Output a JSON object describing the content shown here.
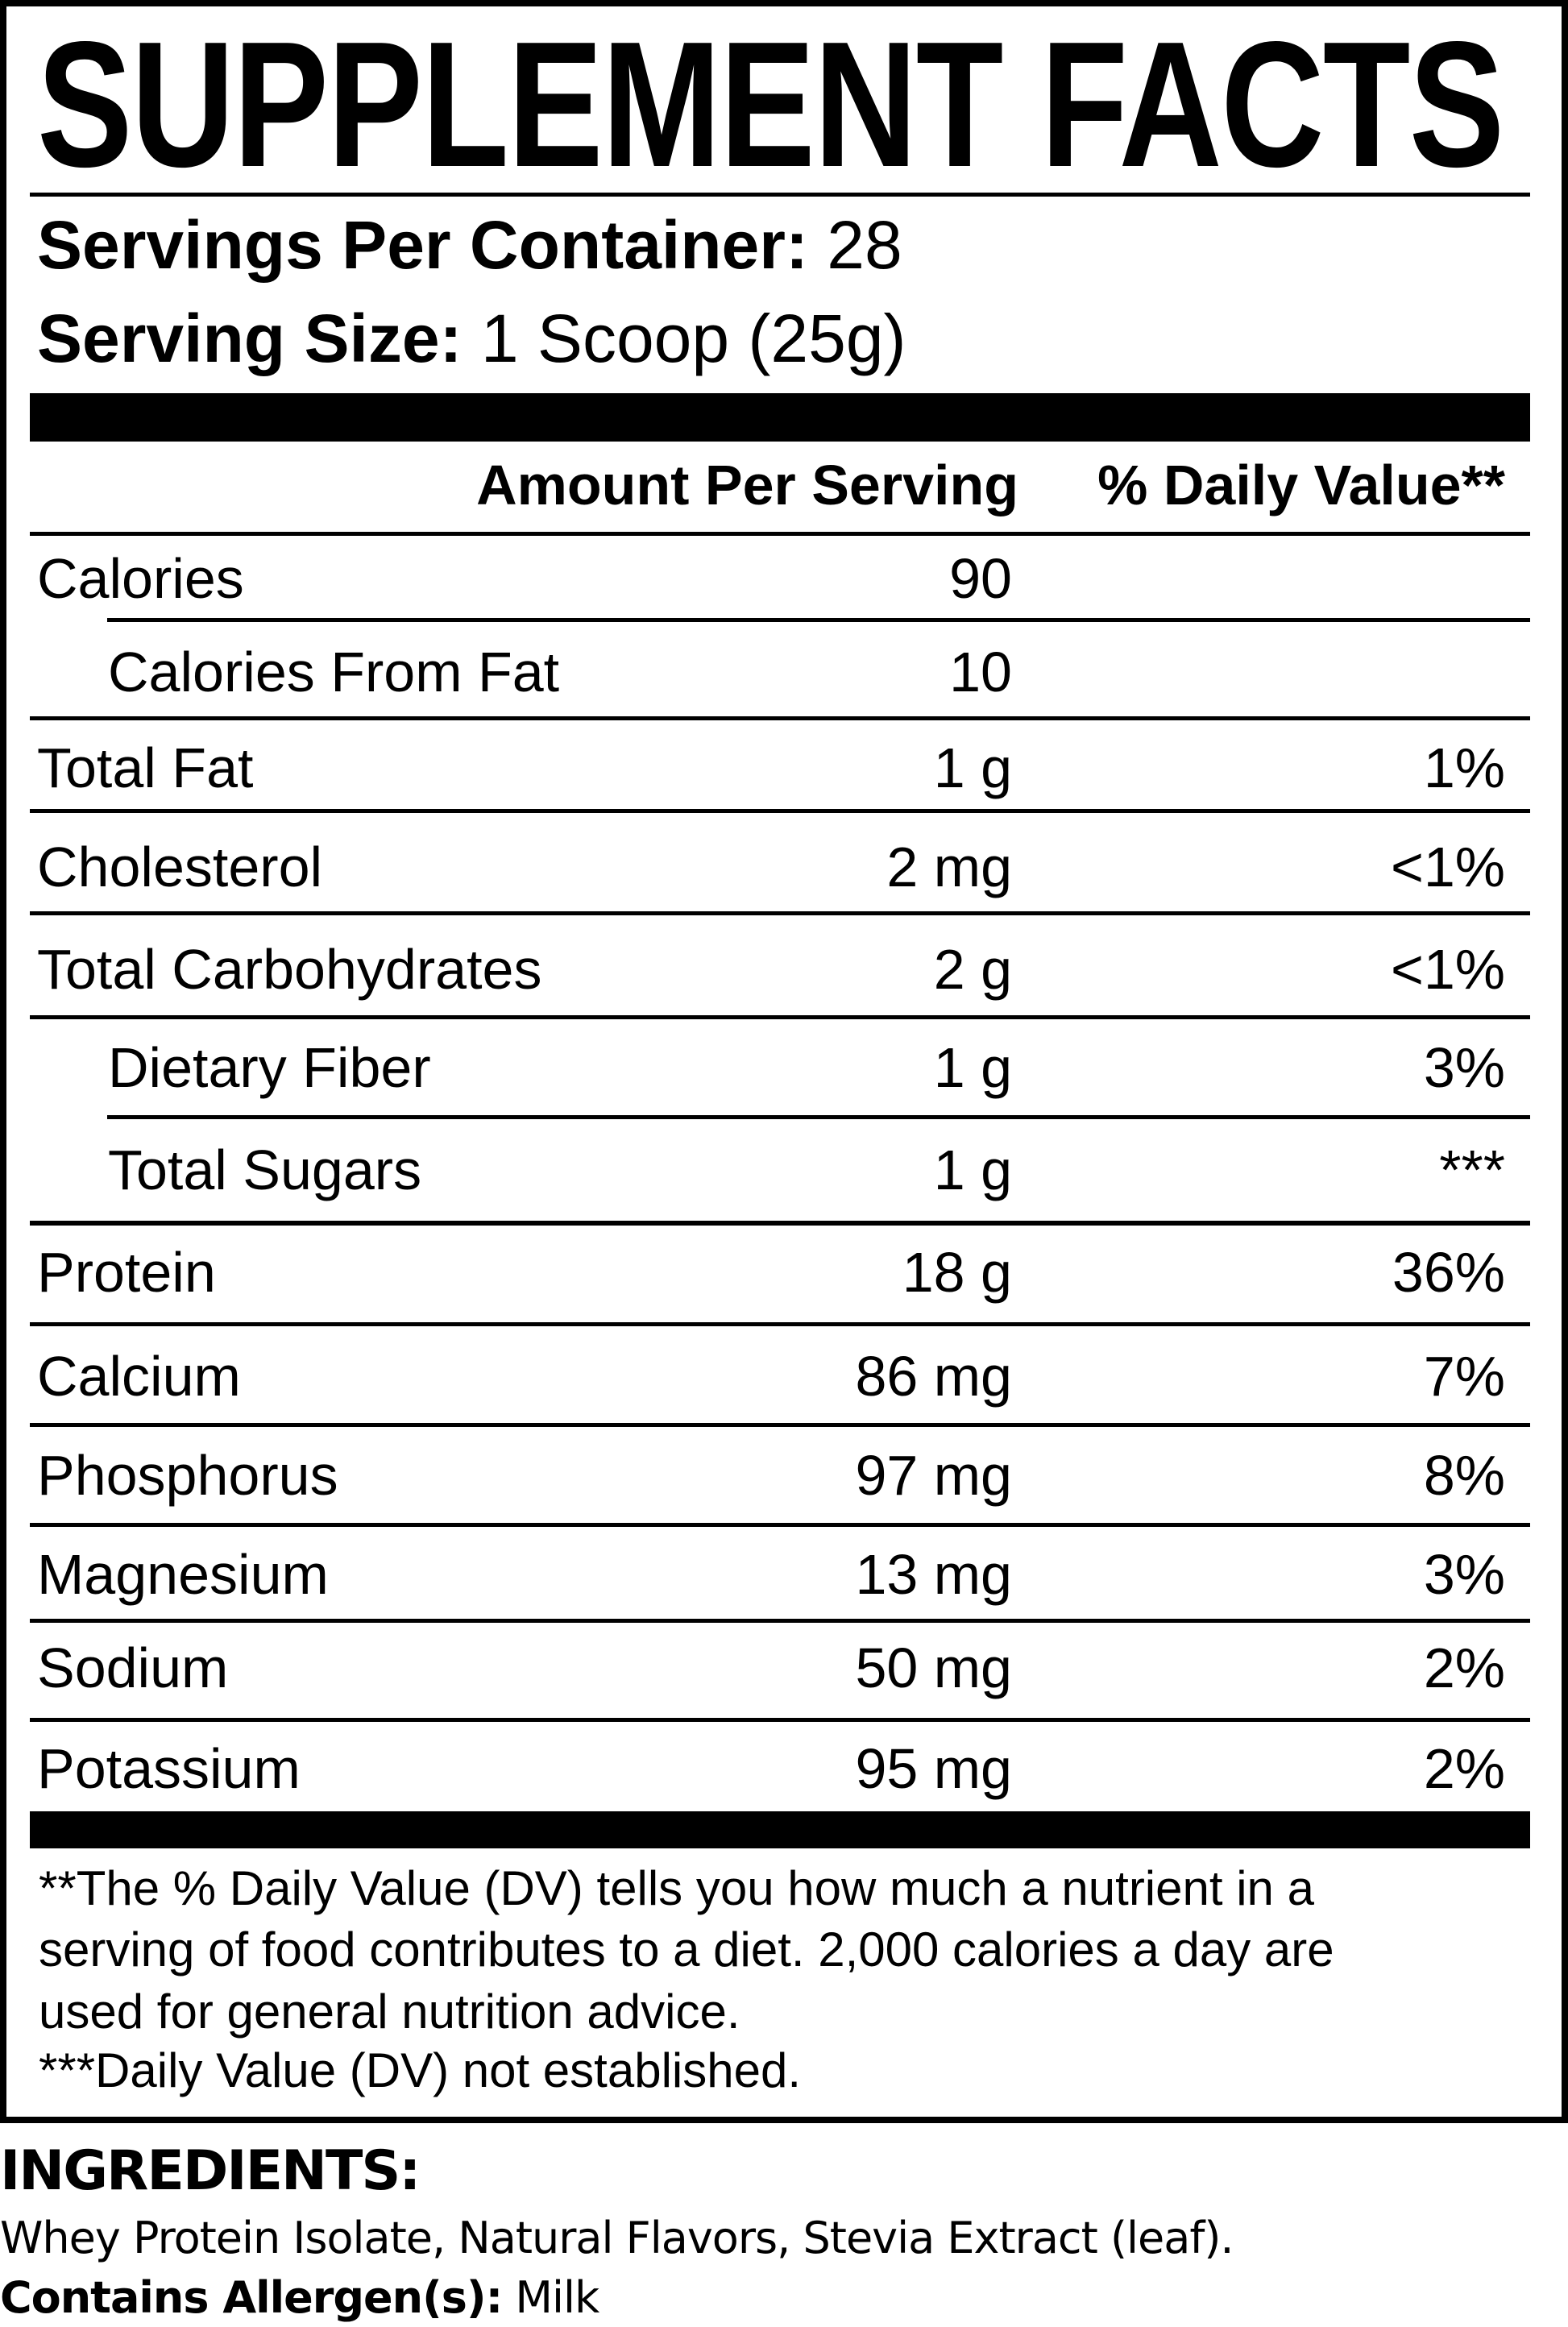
{
  "title": "SUPPLEMENT FACTS",
  "servings_per_container": {
    "label": "Servings Per Container:",
    "value": "28"
  },
  "serving_size": {
    "label": "Serving Size:",
    "value": "1 Scoop (25g)"
  },
  "headers": {
    "amount": "Amount Per Serving",
    "daily_value": "% Daily Value**"
  },
  "rows": [
    {
      "name": "Calories",
      "amount": "90",
      "dv": ""
    },
    {
      "name": "Calories From Fat",
      "amount": "10",
      "dv": ""
    },
    {
      "name": "Total Fat",
      "amount": "1 g",
      "dv": "1%"
    },
    {
      "name": "Cholesterol",
      "amount": "2 mg",
      "dv": "<1%"
    },
    {
      "name": "Total Carbohydrates",
      "amount": "2 g",
      "dv": "<1%"
    },
    {
      "name": "Dietary Fiber",
      "amount": "1 g",
      "dv": "3%"
    },
    {
      "name": "Total Sugars",
      "amount": "1 g",
      "dv": "***"
    },
    {
      "name": "Protein",
      "amount": "18 g",
      "dv": "36%"
    },
    {
      "name": "Calcium",
      "amount": "86 mg",
      "dv": "7%"
    },
    {
      "name": "Phosphorus",
      "amount": "97 mg",
      "dv": "8%"
    },
    {
      "name": "Magnesium",
      "amount": "13 mg",
      "dv": "3%"
    },
    {
      "name": "Sodium",
      "amount": "50 mg",
      "dv": "2%"
    },
    {
      "name": "Potassium",
      "amount": "95 mg",
      "dv": "2%"
    }
  ],
  "footnotes": [
    "**The % Daily Value (DV) tells you how much a nutrient in a",
    "serving of food contributes to a diet. 2,000 calories a day are",
    "used for general nutrition advice.",
    "***Daily Value (DV) not established."
  ],
  "ingredients": {
    "heading": "INGREDIENTS:",
    "text": "Whey Protein Isolate, Natural Flavors, Stevia Extract (leaf).",
    "allergen_label": "Contains Allergen(s):",
    "allergen_value": "Milk"
  }
}
